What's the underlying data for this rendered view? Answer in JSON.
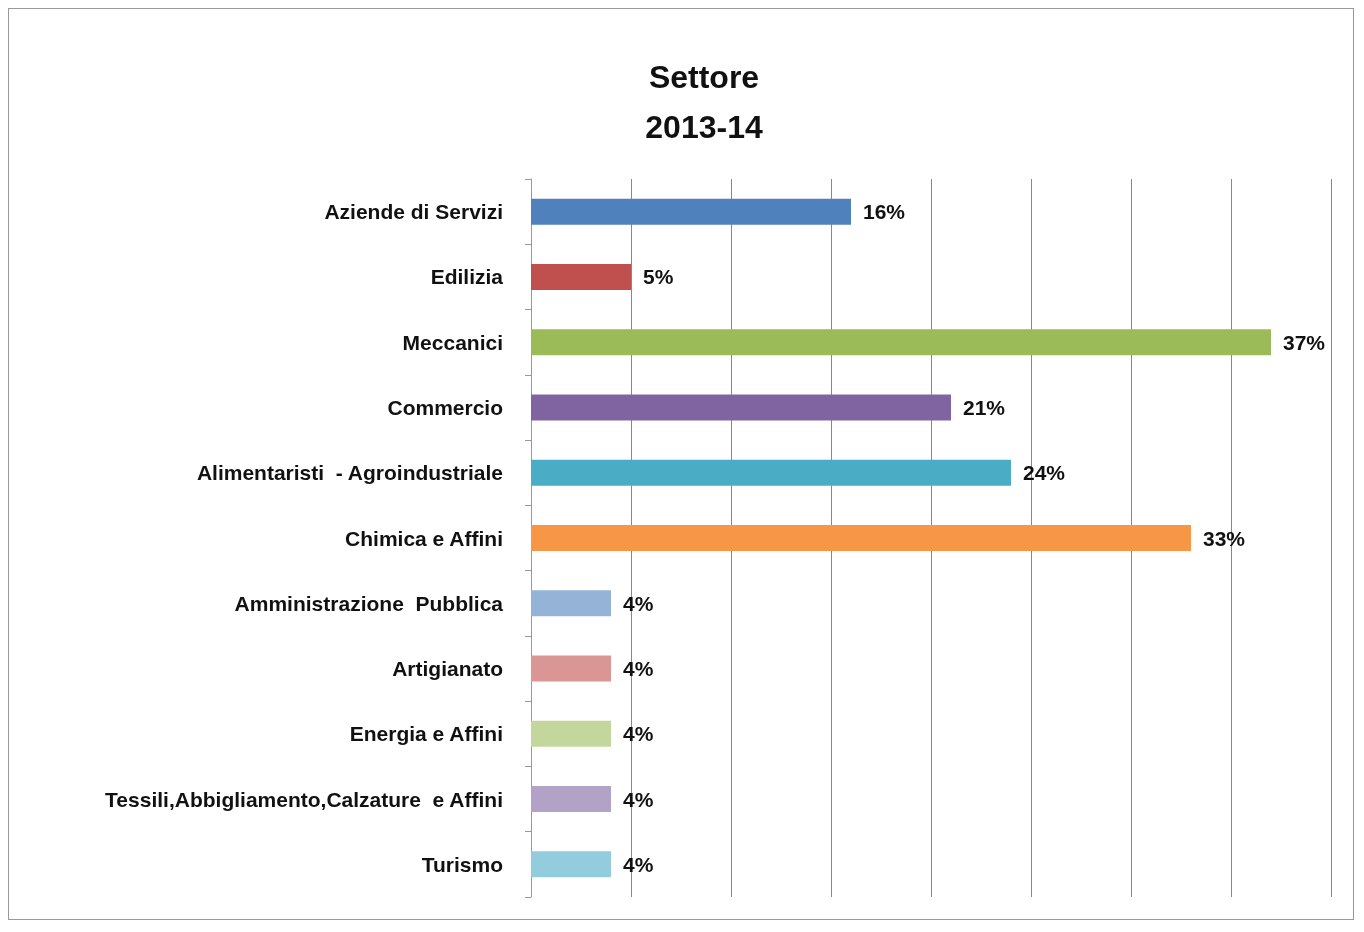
{
  "chart_data": {
    "type": "bar",
    "orientation": "horizontal",
    "title": "Settore\n2013-14",
    "categories": [
      "Aziende di Servizi",
      "Edilizia",
      "Meccanici",
      "Commercio",
      "Alimentaristi  - Agroindustriale",
      "Chimica e Affini",
      "Amministrazione  Pubblica",
      "Artigianato",
      "Energia e Affini",
      "Tessili,Abbigliamento,Calzature  e Affini",
      "Turismo"
    ],
    "values": [
      16,
      5,
      37,
      21,
      24,
      33,
      4,
      4,
      4,
      4,
      4
    ],
    "value_labels": [
      "16%",
      "5%",
      "37%",
      "21%",
      "24%",
      "33%",
      "4%",
      "4%",
      "4%",
      "4%",
      "4%"
    ],
    "colors": [
      "#4f81bd",
      "#c0504d",
      "#9bbb59",
      "#8064a2",
      "#4bacc6",
      "#f79646",
      "#95b3d7",
      "#d99694",
      "#c3d69b",
      "#b2a2c7",
      "#93cddd"
    ],
    "xlim": [
      0,
      40
    ],
    "xticks": [
      {
        "value": 0,
        "label": null
      },
      {
        "value": 5,
        "label": null
      },
      {
        "value": 10,
        "label": null
      },
      {
        "value": 15,
        "label": null
      },
      {
        "value": 20,
        "label": null
      },
      {
        "value": 25,
        "label": null
      },
      {
        "value": 30,
        "label": null
      },
      {
        "value": 35,
        "label": null
      },
      {
        "value": 40,
        "label": null
      }
    ],
    "grid": "x",
    "tick_labels": "y"
  }
}
